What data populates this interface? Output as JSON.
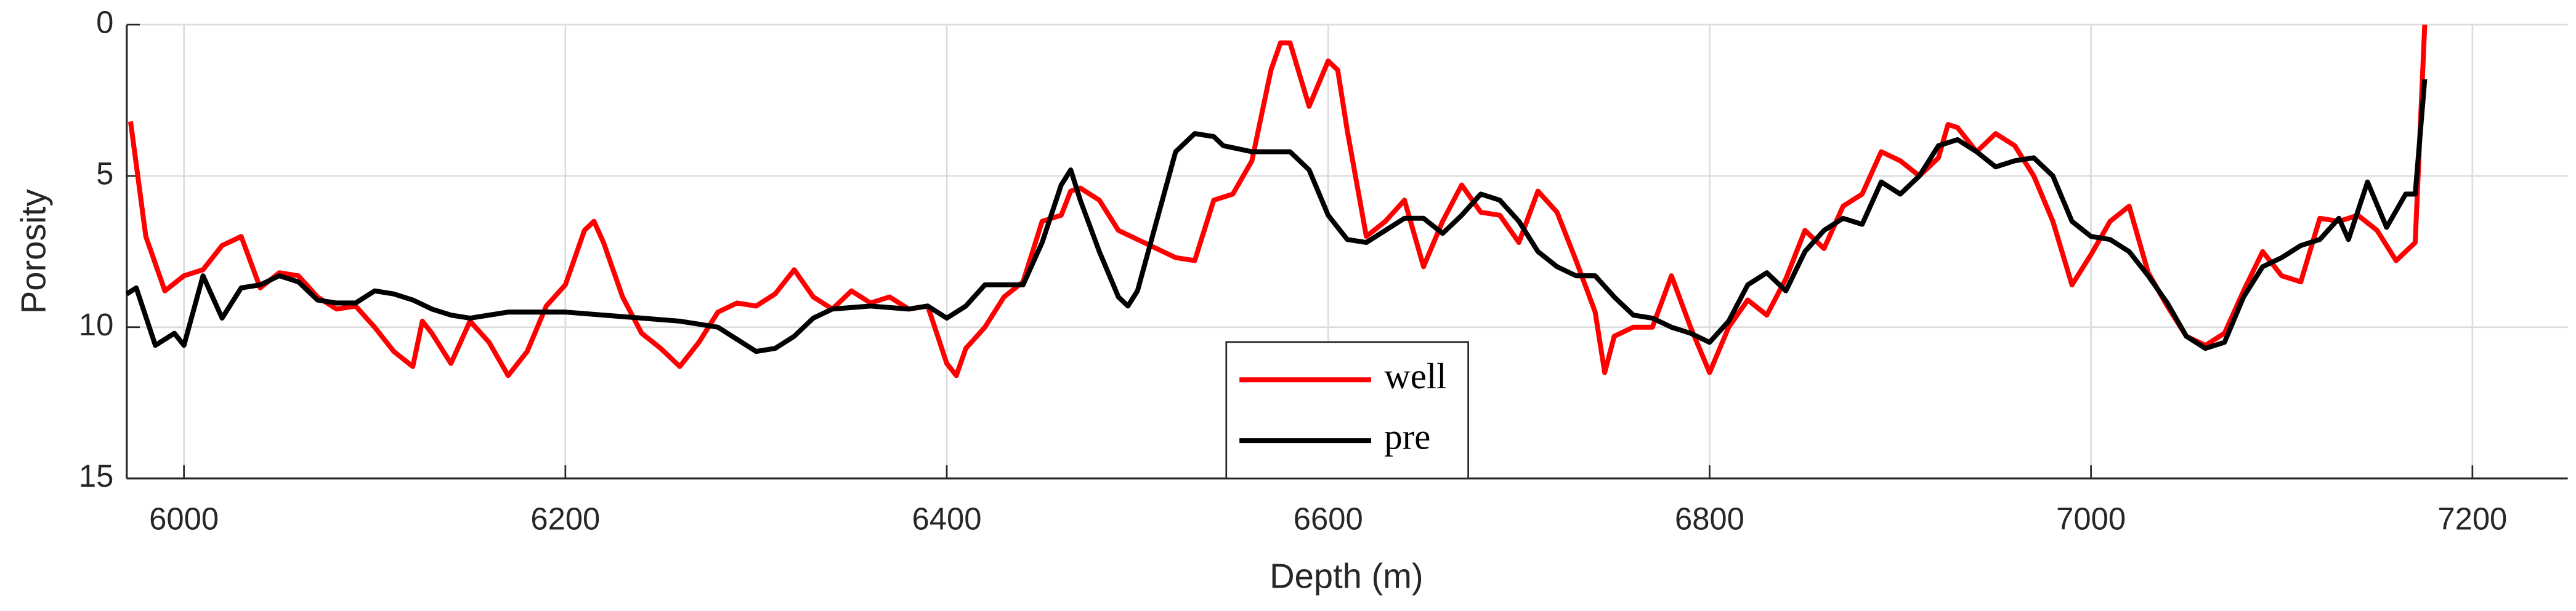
{
  "chart_data": {
    "type": "line",
    "x_label": "Depth (m)",
    "y_label": "Porosity",
    "xlim": [
      5970,
      7250
    ],
    "ylim": [
      0,
      15
    ],
    "y_reversed": true,
    "xticks": [
      6000,
      6200,
      6400,
      6600,
      6800,
      7000,
      7200
    ],
    "yticks": [
      0,
      5,
      10,
      15
    ],
    "grid": true,
    "legend": "south",
    "series": [
      {
        "name": "well",
        "color": "#ff0000",
        "x": [
          5972,
          5980,
          5990,
          6000,
          6010,
          6020,
          6030,
          6040,
          6050,
          6060,
          6070,
          6080,
          6090,
          6100,
          6110,
          6120,
          6125,
          6130,
          6140,
          6150,
          6160,
          6170,
          6180,
          6190,
          6200,
          6210,
          6215,
          6220,
          6230,
          6240,
          6250,
          6260,
          6270,
          6280,
          6290,
          6300,
          6310,
          6320,
          6330,
          6340,
          6350,
          6360,
          6370,
          6380,
          6390,
          6400,
          6405,
          6410,
          6420,
          6430,
          6440,
          6450,
          6460,
          6465,
          6470,
          6480,
          6490,
          6500,
          6510,
          6520,
          6530,
          6540,
          6550,
          6560,
          6565,
          6570,
          6575,
          6580,
          6590,
          6600,
          6605,
          6610,
          6620,
          6630,
          6640,
          6650,
          6660,
          6670,
          6680,
          6690,
          6700,
          6710,
          6720,
          6730,
          6740,
          6745,
          6750,
          6760,
          6770,
          6780,
          6790,
          6800,
          6810,
          6820,
          6830,
          6840,
          6850,
          6860,
          6870,
          6880,
          6890,
          6900,
          6910,
          6920,
          6925,
          6930,
          6940,
          6950,
          6960,
          6970,
          6980,
          6990,
          7000,
          7010,
          7020,
          7030,
          7040,
          7050,
          7060,
          7070,
          7080,
          7090,
          7100,
          7110,
          7120,
          7130,
          7140,
          7150,
          7160,
          7170,
          7175
        ],
        "values": [
          3.2,
          7,
          8.8,
          8.3,
          8.1,
          7.3,
          7.0,
          8.7,
          8.2,
          8.3,
          9.0,
          9.4,
          9.3,
          10.0,
          10.8,
          11.3,
          9.8,
          10.2,
          11.2,
          9.8,
          10.5,
          11.6,
          10.8,
          9.3,
          8.6,
          6.8,
          6.5,
          7.2,
          9.0,
          10.2,
          10.7,
          11.3,
          10.5,
          9.5,
          9.2,
          9.3,
          8.9,
          8.1,
          9.0,
          9.4,
          8.8,
          9.2,
          9.0,
          9.4,
          9.3,
          11.2,
          11.6,
          10.7,
          10.0,
          9.0,
          8.5,
          6.5,
          6.3,
          5.5,
          5.4,
          5.8,
          6.8,
          7.1,
          7.4,
          7.7,
          7.8,
          5.8,
          5.6,
          4.5,
          3.0,
          1.5,
          0.6,
          0.6,
          2.7,
          1.2,
          1.5,
          3.5,
          7.0,
          6.5,
          5.8,
          8.0,
          6.5,
          5.3,
          6.2,
          6.3,
          7.2,
          5.5,
          6.2,
          7.8,
          9.5,
          11.5,
          10.3,
          10.0,
          10.0,
          8.3,
          10.0,
          11.5,
          10.0,
          9.1,
          9.6,
          8.4,
          6.8,
          7.4,
          6.0,
          5.6,
          4.2,
          4.5,
          5.0,
          4.4,
          3.3,
          3.4,
          4.2,
          3.6,
          4.0,
          5.0,
          6.5,
          8.6,
          7.6,
          6.5,
          6.0,
          8.2,
          9.3,
          10.3,
          10.6,
          10.2,
          8.8,
          7.5,
          8.3,
          8.5,
          6.4,
          6.5,
          6.3,
          6.8,
          7.8,
          7.2,
          0
        ]
      },
      {
        "name": "pre",
        "color": "#000000",
        "x": [
          5970,
          5975,
          5985,
          5995,
          6000,
          6010,
          6020,
          6030,
          6040,
          6050,
          6060,
          6070,
          6080,
          6090,
          6100,
          6110,
          6120,
          6130,
          6140,
          6150,
          6160,
          6170,
          6180,
          6200,
          6220,
          6240,
          6260,
          6280,
          6290,
          6300,
          6310,
          6320,
          6330,
          6340,
          6360,
          6380,
          6390,
          6400,
          6410,
          6420,
          6430,
          6440,
          6450,
          6460,
          6465,
          6470,
          6480,
          6490,
          6495,
          6500,
          6510,
          6520,
          6530,
          6540,
          6545,
          6560,
          6580,
          6590,
          6600,
          6610,
          6620,
          6630,
          6640,
          6650,
          6660,
          6670,
          6680,
          6690,
          6700,
          6710,
          6720,
          6730,
          6740,
          6750,
          6760,
          6770,
          6780,
          6790,
          6800,
          6810,
          6820,
          6830,
          6840,
          6850,
          6860,
          6870,
          6880,
          6890,
          6900,
          6910,
          6920,
          6930,
          6940,
          6950,
          6960,
          6970,
          6980,
          6990,
          7000,
          7010,
          7020,
          7030,
          7040,
          7050,
          7060,
          7070,
          7080,
          7090,
          7100,
          7110,
          7120,
          7130,
          7135,
          7145,
          7155,
          7165,
          7170,
          7175
        ],
        "values": [
          8.9,
          8.7,
          10.6,
          10.2,
          10.6,
          8.3,
          9.7,
          8.7,
          8.6,
          8.3,
          8.5,
          9.1,
          9.2,
          9.2,
          8.8,
          8.9,
          9.1,
          9.4,
          9.6,
          9.7,
          9.6,
          9.5,
          9.5,
          9.5,
          9.6,
          9.7,
          9.8,
          10.0,
          10.4,
          10.8,
          10.7,
          10.3,
          9.7,
          9.4,
          9.3,
          9.4,
          9.3,
          9.7,
          9.3,
          8.6,
          8.6,
          8.6,
          7.2,
          5.3,
          4.8,
          5.8,
          7.5,
          9.0,
          9.3,
          8.8,
          6.5,
          4.2,
          3.6,
          3.7,
          4.0,
          4.2,
          4.2,
          4.8,
          6.3,
          7.1,
          7.2,
          6.8,
          6.4,
          6.4,
          6.9,
          6.3,
          5.6,
          5.8,
          6.5,
          7.5,
          8.0,
          8.3,
          8.3,
          9.0,
          9.6,
          9.7,
          10.0,
          10.2,
          10.5,
          9.8,
          8.6,
          8.2,
          8.8,
          7.5,
          6.8,
          6.4,
          6.6,
          5.2,
          5.6,
          5.0,
          4.0,
          3.8,
          4.2,
          4.7,
          4.5,
          4.4,
          5.0,
          6.5,
          7.0,
          7.1,
          7.5,
          8.3,
          9.2,
          10.3,
          10.7,
          10.5,
          9.0,
          8.0,
          7.7,
          7.3,
          7.1,
          6.4,
          7.1,
          5.2,
          6.7,
          5.6,
          5.6,
          1.8
        ]
      }
    ]
  }
}
